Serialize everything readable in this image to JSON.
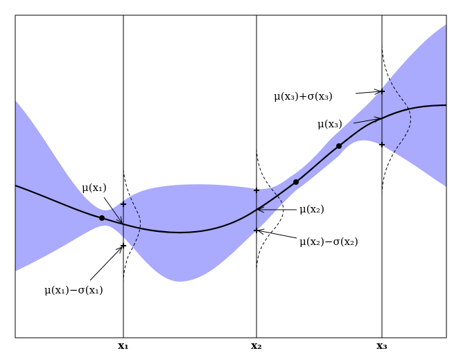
{
  "axis_labels": [
    "x₁",
    "x₂",
    "x₃"
  ],
  "annotations": {
    "mu_x1": "μ(x₁)",
    "mu_minus_sigma_x1": "μ(x₁)−σ(x₁)",
    "mu_x2": "μ(x₂)",
    "mu_minus_sigma_x2": "μ(x₂)−σ(x₂)",
    "mu_plus_sigma_x3": "μ(x₃)+σ(x₃)",
    "mu_x3": "μ(x₃)"
  }
}
